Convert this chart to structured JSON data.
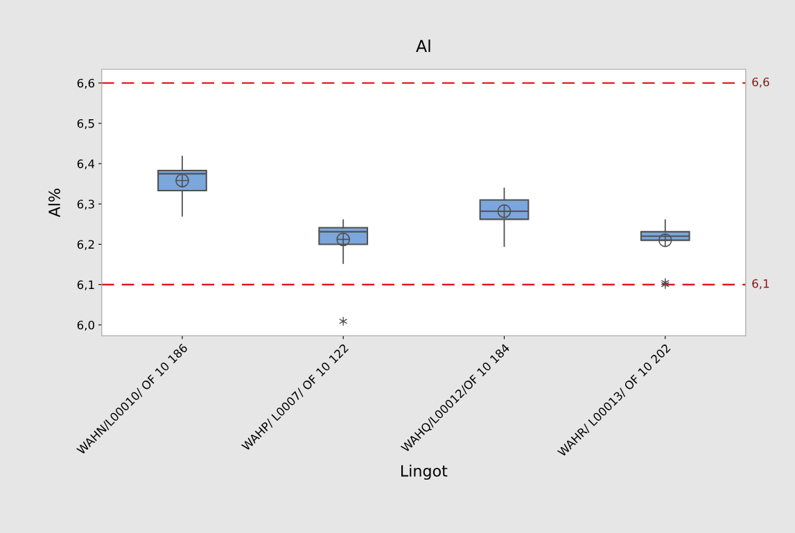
{
  "chart_data": {
    "type": "box",
    "title": "Al",
    "xlabel": "Lingot",
    "ylabel": "Al%",
    "categories": [
      "WAHN/L00010/ OF 10 186",
      "WAHP/ L0007/ OF 10 122",
      "WAHQ/L00012/OF 10 184",
      "WAHR/ L00013/ OF 10 202"
    ],
    "color": "#7ba7db",
    "boxes": [
      {
        "low": 6.27,
        "q1": 6.333,
        "median": 6.375,
        "q3": 6.383,
        "high": 6.418,
        "mean": 6.358
      },
      {
        "low": 6.153,
        "q1": 6.2,
        "median": 6.231,
        "q3": 6.241,
        "high": 6.26,
        "mean": 6.212,
        "outliers": [
          6.009
        ]
      },
      {
        "low": 6.195,
        "q1": 6.262,
        "median": 6.282,
        "q3": 6.31,
        "high": 6.339,
        "mean": 6.282
      },
      {
        "low": 6.21,
        "q1": 6.21,
        "median": 6.22,
        "q3": 6.231,
        "high": 6.26,
        "mean": 6.21,
        "outliers": [
          6.1,
          6.105
        ]
      }
    ],
    "ylim": [
      5.973,
      6.634
    ],
    "yticks": [
      {
        "value": 6.0,
        "label": "6,0"
      },
      {
        "value": 6.1,
        "label": "6,1"
      },
      {
        "value": 6.2,
        "label": "6,2"
      },
      {
        "value": 6.3,
        "label": "6,3"
      },
      {
        "value": 6.4,
        "label": "6,4"
      },
      {
        "value": 6.5,
        "label": "6,5"
      },
      {
        "value": 6.6,
        "label": "6,6"
      }
    ],
    "ref_lines": [
      {
        "axis": "y",
        "value": 6.6,
        "label": "6,6",
        "color": "#e00000",
        "line_style": "dashed"
      },
      {
        "axis": "y",
        "value": 6.1,
        "label": "6,1",
        "color": "#e00000",
        "line_style": "dashed"
      }
    ],
    "grid": false,
    "legend": false
  }
}
